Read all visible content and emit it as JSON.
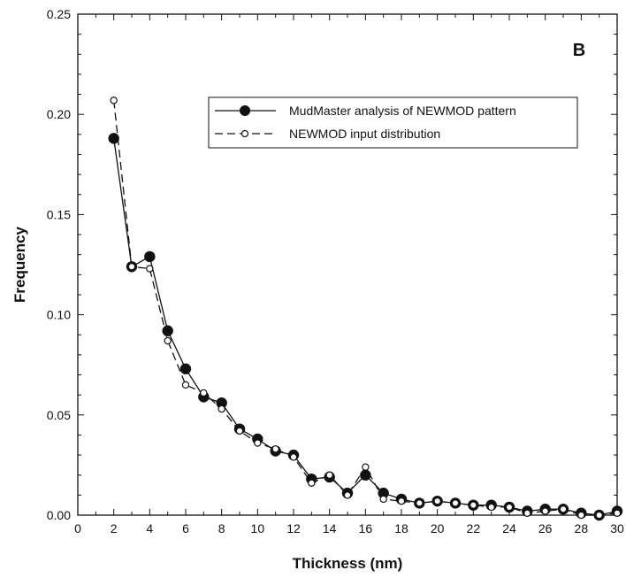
{
  "chart_data": {
    "type": "line",
    "panel_label": "B",
    "xlabel": "Thickness  (nm)",
    "ylabel": "Frequency",
    "xlim": [
      0,
      30
    ],
    "ylim": [
      0,
      0.25
    ],
    "x_major_ticks": [
      0,
      2,
      4,
      6,
      8,
      10,
      12,
      14,
      16,
      18,
      20,
      22,
      24,
      26,
      28,
      30
    ],
    "x_tick_labels": [
      "0",
      "2",
      "4",
      "6",
      "8",
      "10",
      "12",
      "14",
      "16",
      "18",
      "20",
      "22",
      "24",
      "26",
      "28",
      "30"
    ],
    "y_major_ticks": [
      0,
      0.05,
      0.1,
      0.15,
      0.2,
      0.25
    ],
    "y_tick_labels": [
      "0.00",
      "0.05",
      "0.10",
      "0.15",
      "0.20",
      "0.25"
    ],
    "grid": false,
    "legend_position": "top-right",
    "x": [
      2,
      3,
      4,
      5,
      6,
      7,
      8,
      9,
      10,
      11,
      12,
      13,
      14,
      15,
      16,
      17,
      18,
      19,
      20,
      21,
      22,
      23,
      24,
      25,
      26,
      27,
      28,
      29,
      30
    ],
    "series": [
      {
        "name": "MudMaster analysis of NEWMOD pattern",
        "style": "solid line, filled circle markers",
        "color": "#111111",
        "values": [
          0.188,
          0.124,
          0.129,
          0.092,
          0.073,
          0.059,
          0.056,
          0.043,
          0.038,
          0.032,
          0.03,
          0.018,
          0.019,
          0.011,
          0.02,
          0.011,
          0.008,
          0.006,
          0.007,
          0.006,
          0.005,
          0.005,
          0.004,
          0.002,
          0.003,
          0.003,
          0.001,
          0.0,
          0.002
        ]
      },
      {
        "name": "NEWMOD input distribution",
        "style": "dashed line, open circle markers",
        "color": "#111111",
        "values": [
          0.207,
          0.124,
          0.123,
          0.087,
          0.065,
          0.061,
          0.053,
          0.042,
          0.036,
          0.033,
          0.029,
          0.016,
          0.02,
          0.01,
          0.024,
          0.008,
          0.007,
          0.006,
          0.007,
          0.006,
          0.005,
          0.004,
          0.004,
          0.001,
          0.002,
          0.003,
          0.0,
          0.0,
          0.001
        ]
      }
    ]
  }
}
